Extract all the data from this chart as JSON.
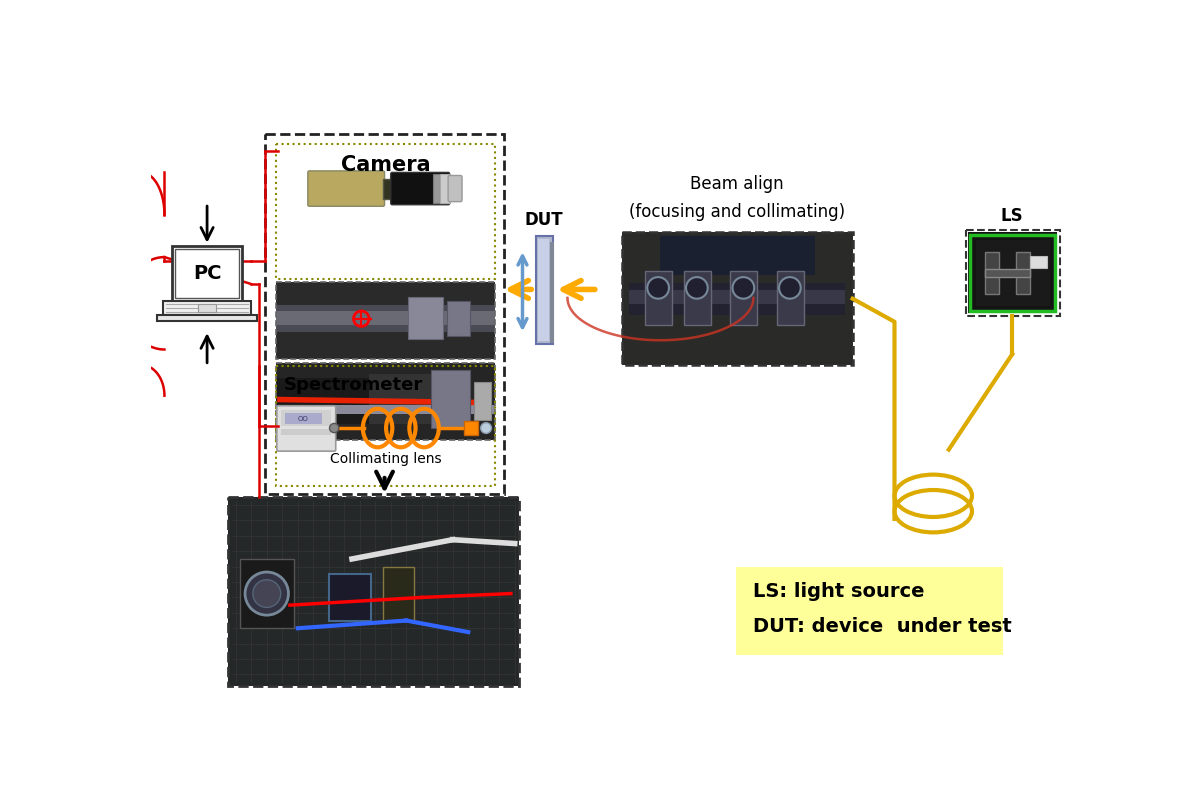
{
  "bg_color": "#ffffff",
  "camera_label": "Camera",
  "spectrometer_label": "Spectrometer",
  "collimating_label": "Collimating lens",
  "pc_label": "PC",
  "dut_label": "DUT",
  "ls_label": "LS",
  "beam_align_label": "Beam align\n(focusing and collimating)",
  "legend_ls": "LS: light source",
  "legend_dut": "DUT: device  under test",
  "legend_bg": "#ffff99",
  "red_line": "#dd0000",
  "orange_arrow": "#FFaa00",
  "blue_arrow": "#6699cc",
  "yellow_fiber": "#ddaa00",
  "coil_color": "#FF8800",
  "cam_body_color": "#b8a860",
  "cam_lens_color": "#111111",
  "cam_cap_color": "#c0c0c0",
  "outer_dash": "#222222",
  "inner_dot": "#888800"
}
